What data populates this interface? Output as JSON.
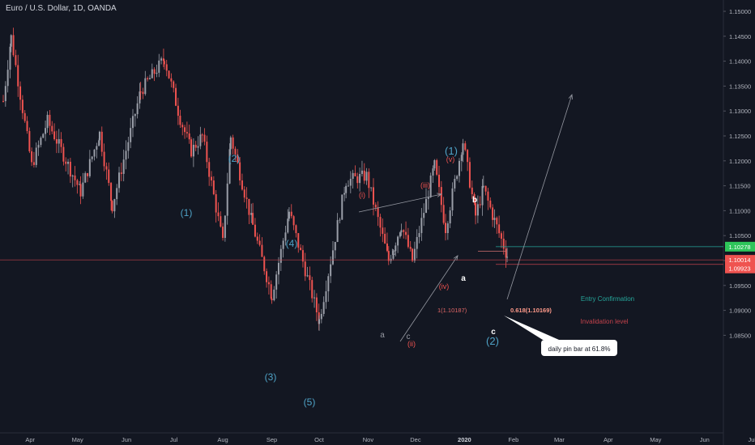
{
  "title": "Euro / U.S. Dollar, 1D, OANDA",
  "colors": {
    "background": "#131722",
    "up": "#9a9ea8",
    "down": "#ef5350",
    "blue_label": "#4fa3c7",
    "red_label": "#ef5350",
    "green_line": "#26a69a",
    "entry_badge": "#2ec55a",
    "invalid_badge": "#ef5350",
    "axis_text": "#b2b5be",
    "hline_red": "#c2424b"
  },
  "chart_data": {
    "type": "candlestick",
    "ylim": [
      1.0825,
      1.1525
    ],
    "y_ticks": [
      "1.15000",
      "1.14500",
      "1.14000",
      "1.13500",
      "1.13000",
      "1.12500",
      "1.12000",
      "1.11500",
      "1.11000",
      "1.10500",
      "1.10000",
      "1.09500",
      "1.09000",
      "1.08500"
    ],
    "x_labels": [
      "Apr",
      "May",
      "Jun",
      "Jul",
      "Aug",
      "Sep",
      "Oct",
      "Nov",
      "Dec",
      "2020",
      "Feb",
      "Mar",
      "Apr",
      "May",
      "Jun",
      "Jul"
    ],
    "path_points": [
      [
        "2019-03-15",
        1.132
      ],
      [
        "2019-03-20",
        1.1448
      ],
      [
        "2019-04-02",
        1.119
      ],
      [
        "2019-04-12",
        1.128
      ],
      [
        "2019-05-03",
        1.1138
      ],
      [
        "2019-05-15",
        1.1255
      ],
      [
        "2019-05-23",
        1.111
      ],
      [
        "2019-06-10",
        1.134
      ],
      [
        "2019-06-25",
        1.1405
      ],
      [
        "2019-07-05",
        1.1285
      ],
      [
        "2019-07-12",
        1.122
      ],
      [
        "2019-07-19",
        1.125
      ],
      [
        "2019-08-01",
        1.1035
      ],
      [
        "2019-08-06",
        1.1248
      ],
      [
        "2019-08-20",
        1.107
      ],
      [
        "2019-09-01",
        1.093
      ],
      [
        "2019-09-12",
        1.1098
      ],
      [
        "2019-10-01",
        1.088
      ],
      [
        "2019-10-18",
        1.116
      ],
      [
        "2019-10-31",
        1.117
      ],
      [
        "2019-11-14",
        1.1
      ],
      [
        "2019-11-22",
        1.1072
      ],
      [
        "2019-11-29",
        1.1
      ],
      [
        "2019-12-13",
        1.119
      ],
      [
        "2019-12-20",
        1.1065
      ],
      [
        "2019-12-31",
        1.1239
      ],
      [
        "2020-01-08",
        1.109
      ],
      [
        "2020-01-13",
        1.1145
      ],
      [
        "2020-01-20",
        1.108
      ],
      [
        "2020-01-28",
        1.101
      ],
      [
        "2020-01-29",
        1.0992
      ]
    ],
    "annotations": {
      "blue_waves": [
        "(1)",
        "(2)",
        "(3)",
        "(4)",
        "(5)",
        "(1)",
        "(2)"
      ],
      "red_waves": [
        "(i)",
        "(ii)",
        "(iii)",
        "(iv)",
        "(v)"
      ],
      "abc_small": [
        "a",
        "b",
        "c"
      ],
      "abc_white": [
        "a",
        "b",
        "c"
      ]
    },
    "levels": {
      "entry": {
        "label": "Entry Confirmation",
        "value": 1.10278,
        "badge": "1.10278"
      },
      "current": {
        "value": 1.10014,
        "badge": "1.10014"
      },
      "invalidation": {
        "label": "Invalidation level",
        "value": 1.09923,
        "badge": "1.09923"
      },
      "fib_left": "1(1.10187)",
      "fib_right": "0.618(1.10169)"
    },
    "callout": "daily pin bar at 61.8%"
  }
}
